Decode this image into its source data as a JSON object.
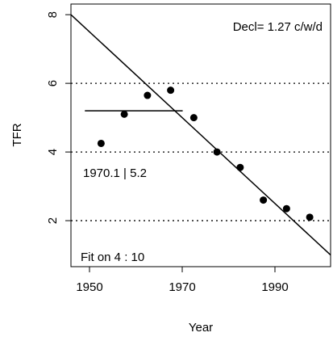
{
  "chart_data": {
    "type": "scatter",
    "x_label": "Year",
    "y_label": "TFR",
    "x": [
      1952.5,
      1957.5,
      1962.5,
      1967.5,
      1972.5,
      1977.5,
      1982.5,
      1987.5,
      1992.5,
      1997.5
    ],
    "values": [
      4.25,
      5.1,
      5.65,
      5.8,
      5.0,
      4.0,
      3.55,
      2.6,
      2.35,
      2.1
    ],
    "color": "#000000",
    "xlim": [
      1946,
      2002
    ],
    "xticks": [
      1950,
      1970,
      1990
    ],
    "ylim": [
      0.66,
      8.31
    ],
    "yticks": [
      2,
      4,
      6,
      8
    ],
    "grid_lines": [
      2,
      4,
      6
    ],
    "fit_line": {
      "x": [
        1946,
        2002
      ],
      "y": [
        8.0,
        1.0
      ]
    },
    "level_segment": {
      "x": [
        1949,
        1970.1
      ],
      "y": 5.2
    },
    "annotations": [
      "Decl= 1.27  c/w/d",
      "1970.1 | 5.2",
      "Fit on  4 : 10"
    ]
  }
}
